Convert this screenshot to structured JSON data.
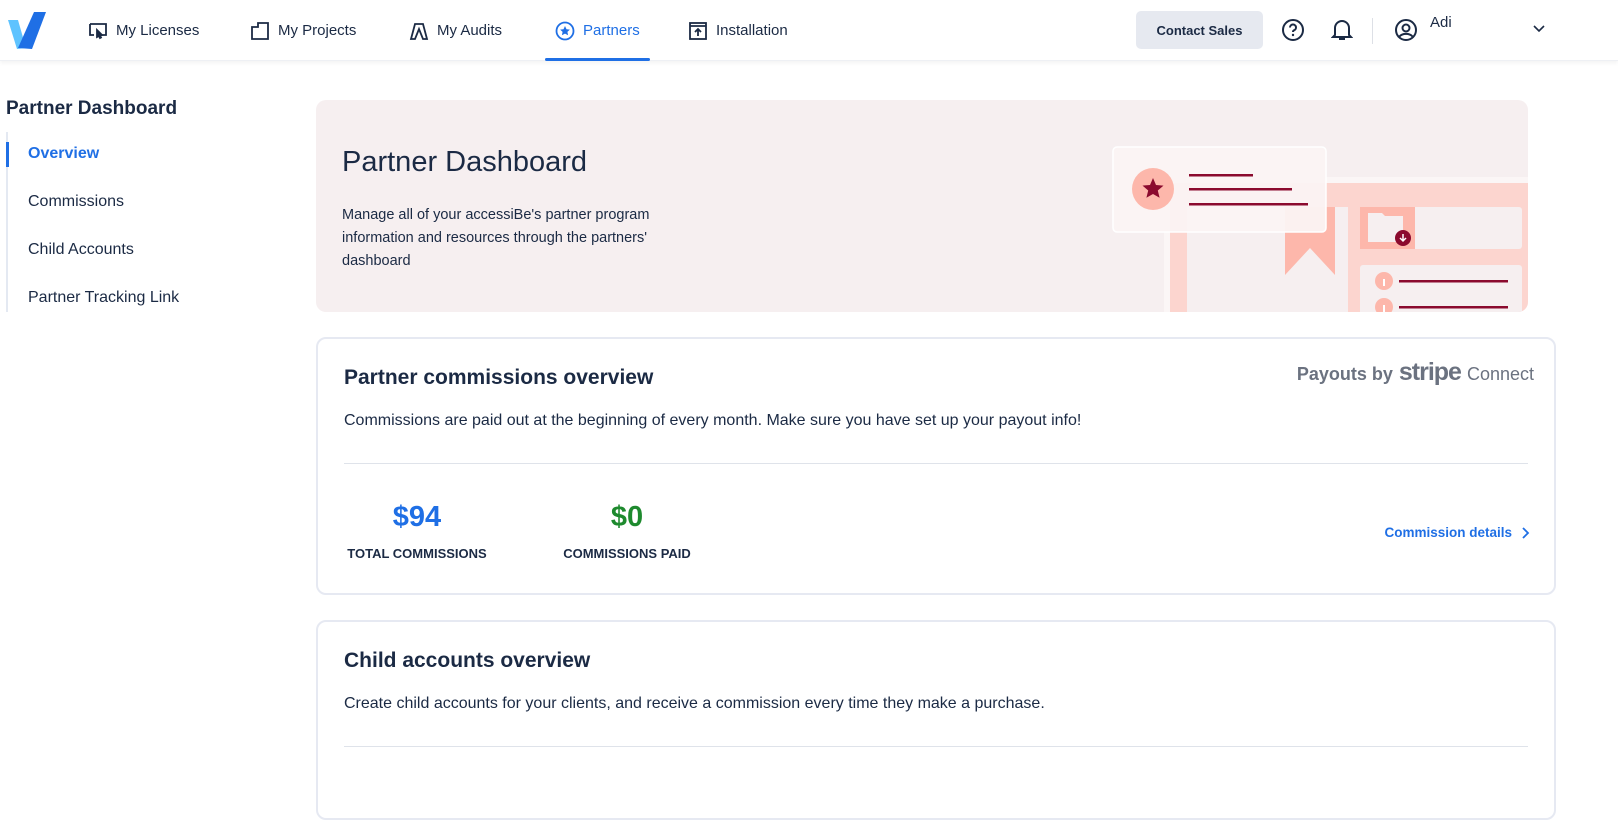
{
  "nav": {
    "items": [
      {
        "label": "My Licenses",
        "icon": "licenses-icon"
      },
      {
        "label": "My Projects",
        "icon": "projects-icon"
      },
      {
        "label": "My Audits",
        "icon": "audits-icon"
      },
      {
        "label": "Partners",
        "icon": "star-circle-icon",
        "active": true
      },
      {
        "label": "Installation",
        "icon": "installation-icon"
      }
    ],
    "contact_sales": "Contact Sales",
    "user_name": "Adi"
  },
  "sidebar": {
    "title": "Partner Dashboard",
    "items": [
      {
        "label": "Overview",
        "active": true
      },
      {
        "label": "Commissions"
      },
      {
        "label": "Child Accounts"
      },
      {
        "label": "Partner Tracking Link"
      }
    ]
  },
  "banner": {
    "title": "Partner Dashboard",
    "description": "Manage all of your accessiBe's partner program information and resources through the partners' dashboard"
  },
  "commissions": {
    "title": "Partner commissions overview",
    "description": "Commissions are paid out at the beginning of every month. Make sure you have set up your payout info!",
    "payouts_prefix": "Payouts by",
    "payouts_brand": "stripe",
    "payouts_suffix": "Connect",
    "total_value": "$94",
    "total_label": "TOTAL COMMISSIONS",
    "paid_value": "$0",
    "paid_label": "COMMISSIONS PAID",
    "details_link": "Commission details"
  },
  "child": {
    "title": "Child accounts overview",
    "description": "Create child accounts for your clients, and receive a commission every time they make a purchase."
  },
  "colors": {
    "accent": "#1f6fe5",
    "paid": "#1e8a2e",
    "banner_bg": "#f6eff0",
    "illustration_dark": "#8b0a2e"
  }
}
